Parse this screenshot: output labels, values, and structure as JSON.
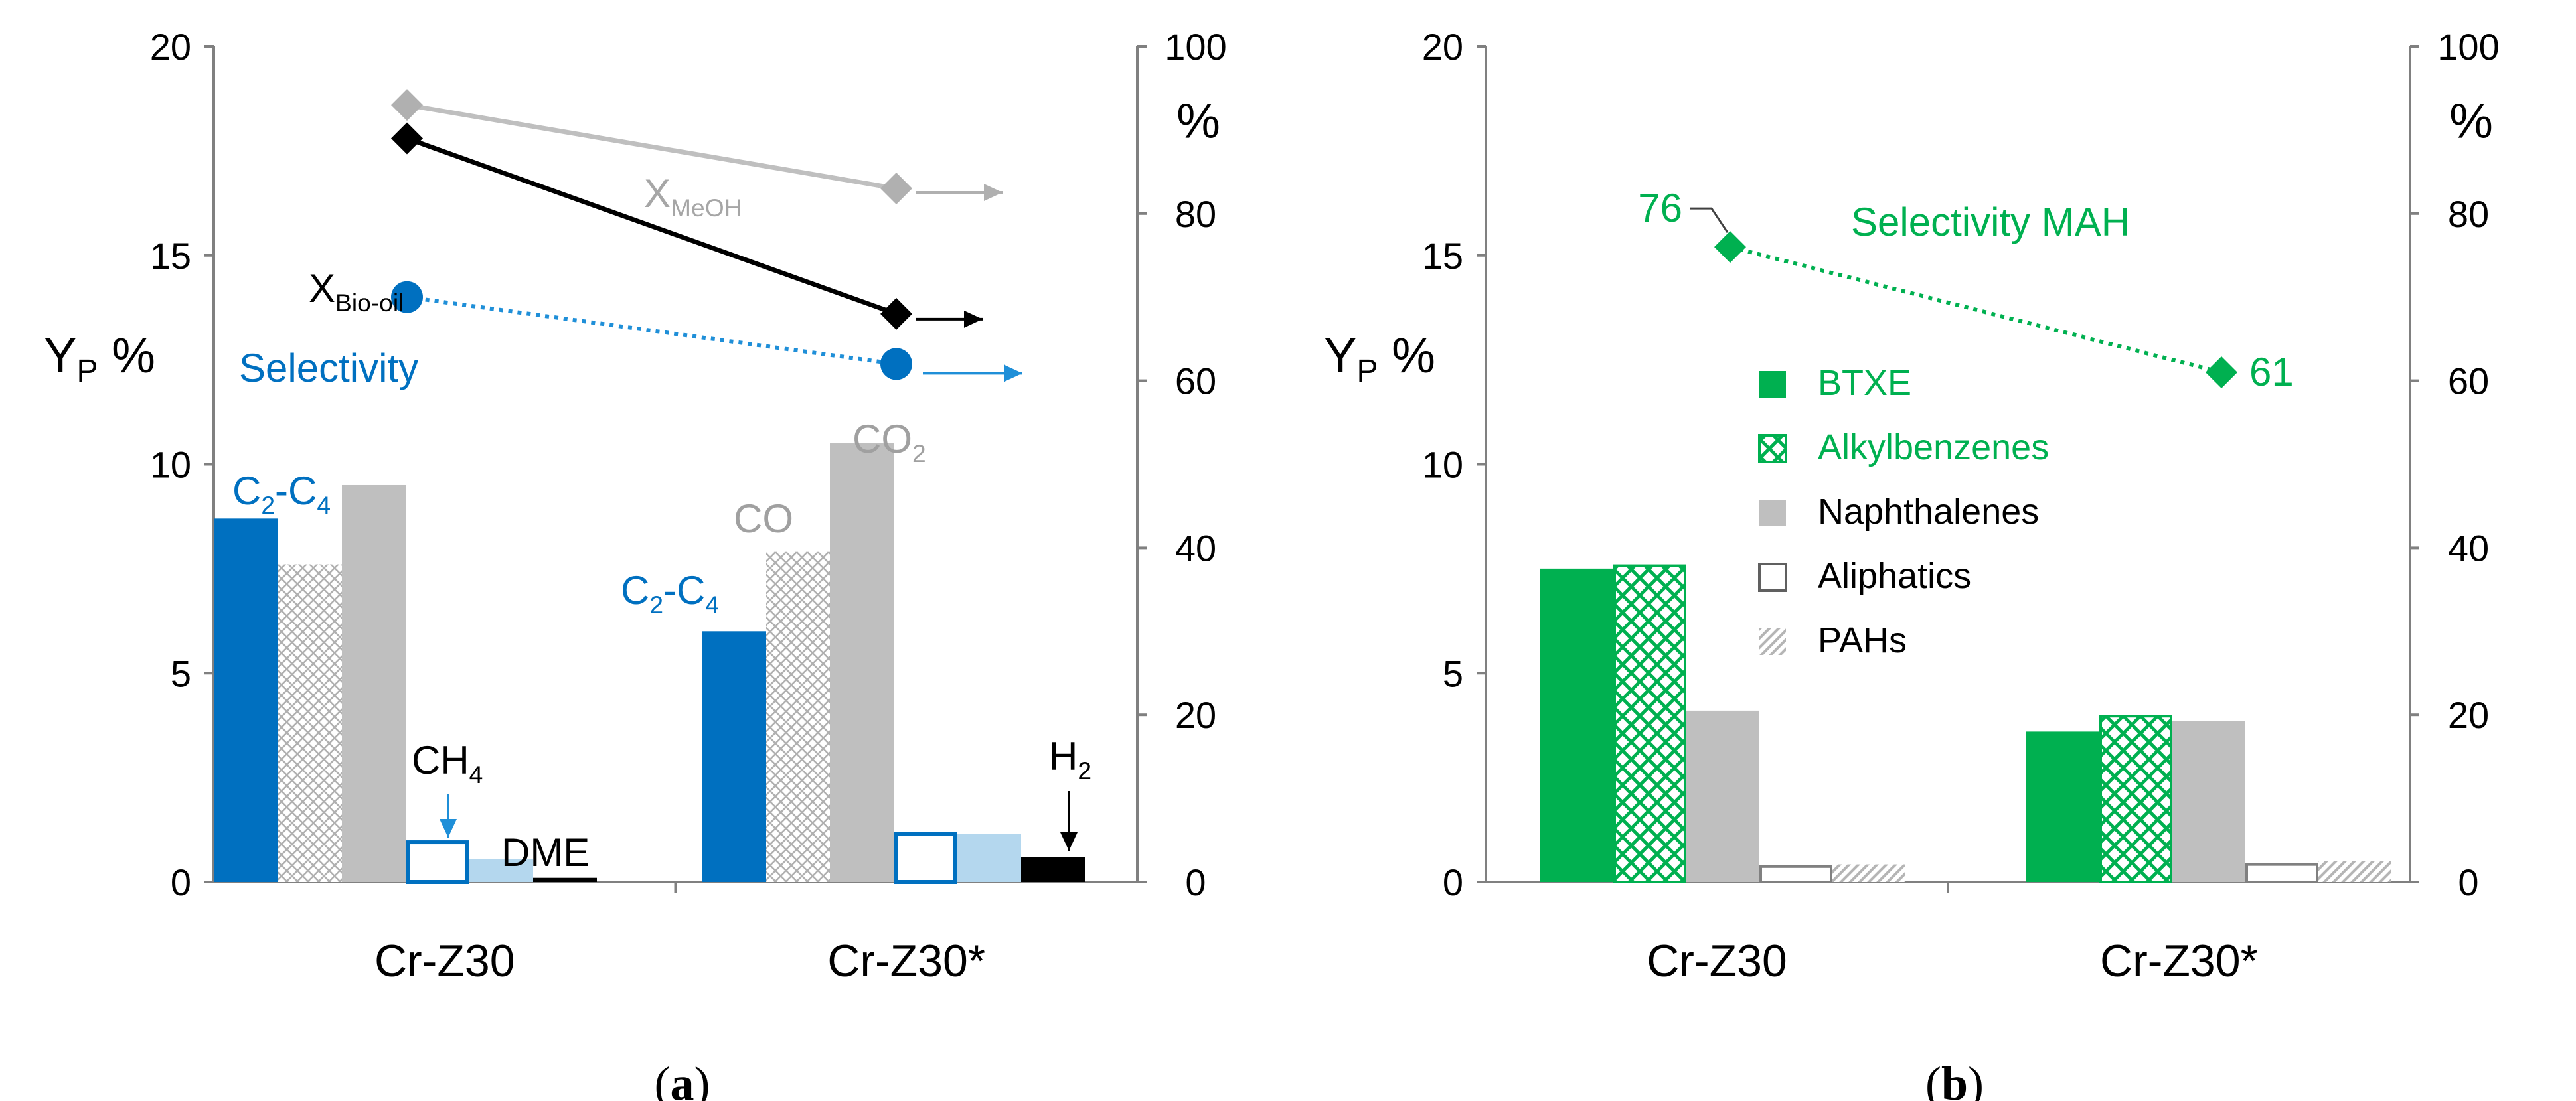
{
  "colors": {
    "blue": "#0070c0",
    "light_blue": "#b4d7ee",
    "dot_blue": "#1f8fd8",
    "grey": "#bfbfbf",
    "dark": "#000000",
    "green": "#00b050",
    "axis": "#808080"
  },
  "chart_data": [
    {
      "panel": "a",
      "panel_label": "(a)",
      "type": "bar",
      "categories": [
        "Cr-Z30",
        "Cr-Z30*"
      ],
      "ylabel": "Y",
      "ylabel_sub": "P",
      "ylabel_unit": "%",
      "ylim": [
        0,
        20
      ],
      "yticks": [
        "0",
        "5",
        "10",
        "15",
        "20"
      ],
      "y2label": "%",
      "y2lim": [
        0,
        100
      ],
      "y2ticks": [
        "0",
        "20",
        "40",
        "60",
        "80",
        "100"
      ],
      "series": [
        {
          "name": "C2-C4",
          "values": [
            8.7,
            6.0
          ]
        },
        {
          "name": "CO",
          "values": [
            7.6,
            7.9
          ]
        },
        {
          "name": "CO2",
          "values": [
            9.5,
            10.5
          ]
        },
        {
          "name": "CH4",
          "values": [
            1.0,
            1.2
          ]
        },
        {
          "name": "DME",
          "values": [
            0.55,
            1.15
          ]
        },
        {
          "name": "H2",
          "values": [
            0.1,
            0.6
          ]
        }
      ],
      "lines": [
        {
          "name": "X_MeOH",
          "axis": "right",
          "values": [
            93,
            83
          ]
        },
        {
          "name": "X_Bio-oil",
          "axis": "right",
          "values": [
            89,
            68
          ]
        },
        {
          "name": "Selectivity",
          "axis": "right",
          "values": [
            70,
            62
          ]
        }
      ],
      "annotations": {
        "c2c4_main": "C",
        "c2c4_sub1": "2",
        "c2c4_dash": "-C",
        "c2c4_sub2": "4",
        "co": "CO",
        "co2_main": "CO",
        "co2_sub": "2",
        "ch4_main": "CH",
        "ch4_sub": "4",
        "dme": "DME",
        "h2_main": "H",
        "h2_sub": "2",
        "xmeoh_main": "X",
        "xmeoh_sub": "MeOH",
        "xbio_main": "X",
        "xbio_sub": "Bio-oil",
        "selectivity": "Selectivity"
      }
    },
    {
      "panel": "b",
      "panel_label": "(b)",
      "type": "bar",
      "categories": [
        "Cr-Z30",
        "Cr-Z30*"
      ],
      "ylabel": "Y",
      "ylabel_sub": "P",
      "ylabel_unit": "%",
      "ylim": [
        0,
        20
      ],
      "yticks": [
        "0",
        "5",
        "10",
        "15",
        "20"
      ],
      "y2label": "%",
      "y2lim": [
        0,
        100
      ],
      "y2ticks": [
        "0",
        "20",
        "40",
        "60",
        "80",
        "100"
      ],
      "series": [
        {
          "name": "BTXE",
          "values": [
            7.5,
            3.6
          ]
        },
        {
          "name": "Alkylbenzenes",
          "values": [
            7.6,
            4.0
          ]
        },
        {
          "name": "Naphthalenes",
          "values": [
            4.1,
            3.85
          ]
        },
        {
          "name": "Aliphatics",
          "values": [
            0.4,
            0.45
          ]
        },
        {
          "name": "PAHs",
          "values": [
            0.42,
            0.5
          ]
        }
      ],
      "lines": [
        {
          "name": "Selectivity MAH",
          "axis": "right",
          "values": [
            76,
            61
          ],
          "labels": [
            "76",
            "61"
          ]
        }
      ],
      "title_annotation": "Selectivity  MAH"
    }
  ]
}
